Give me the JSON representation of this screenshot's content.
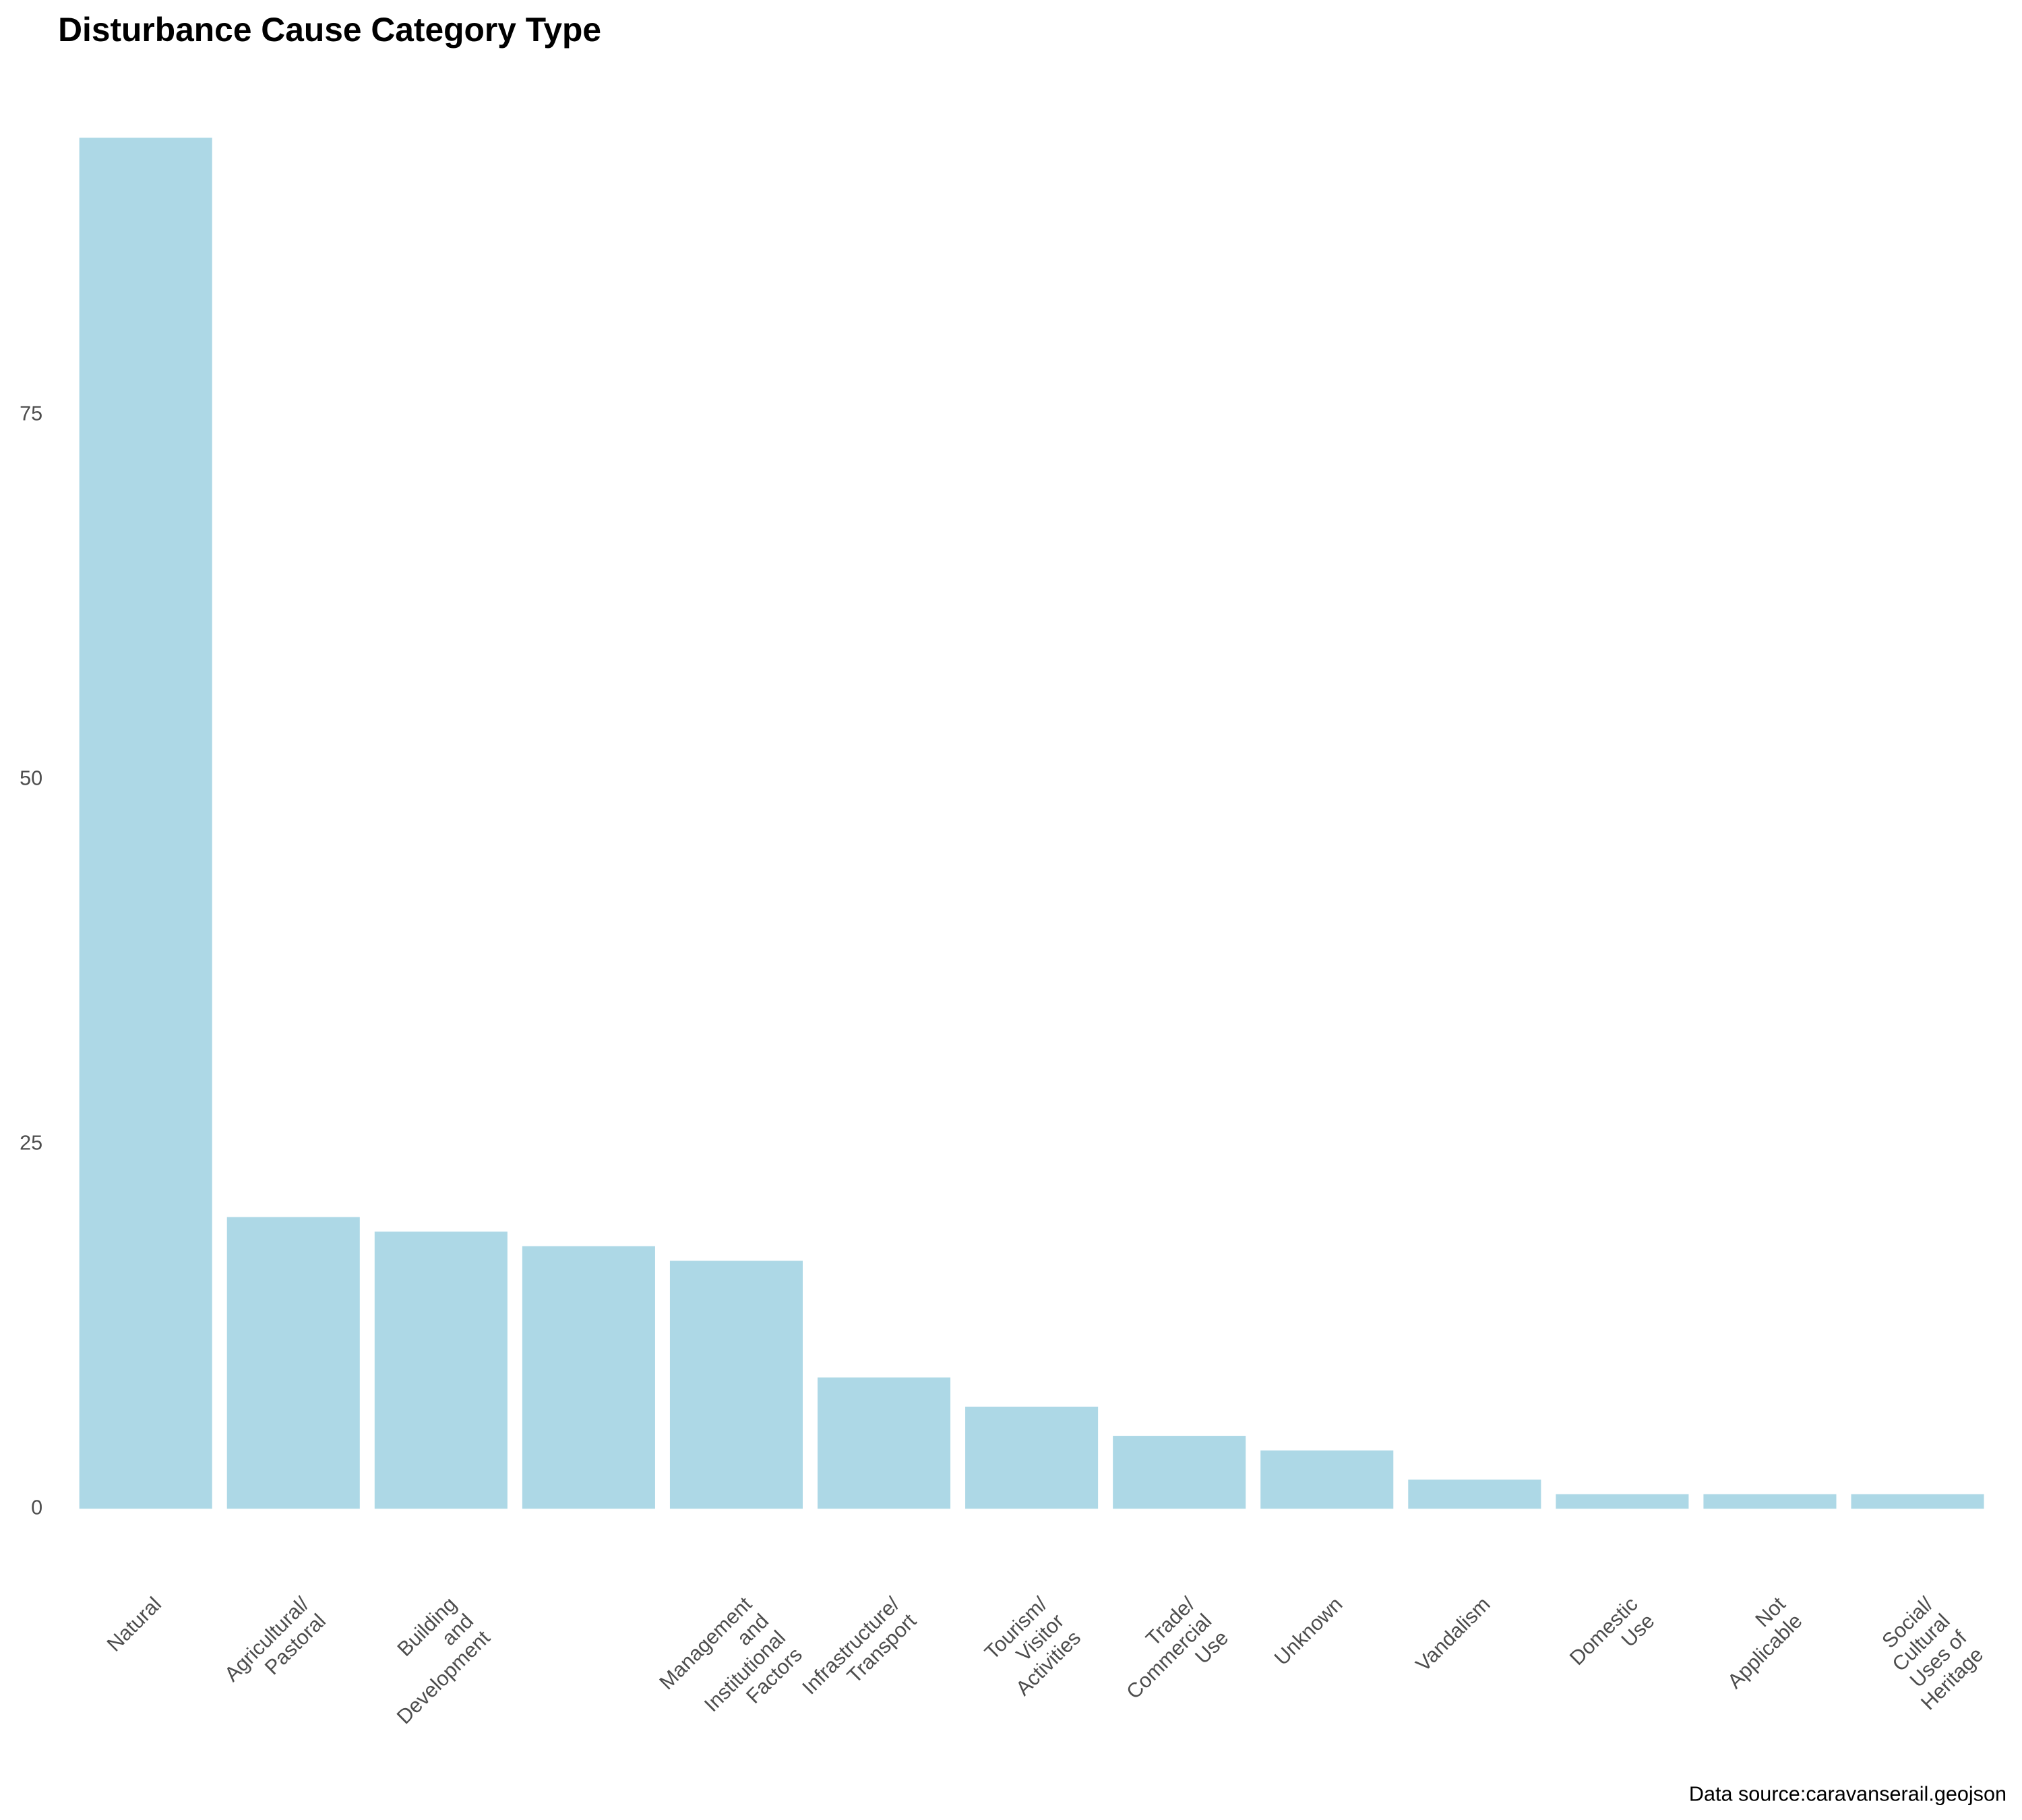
{
  "chart_data": {
    "type": "bar",
    "title": "Disturbance Cause Category Type",
    "caption": "Data source:caravanserail.geojson",
    "categories": [
      "Natural",
      "Agricultural/\nPastoral",
      "Building\nand\nDevelopment",
      null,
      "Management\nand\nInstitutional\nFactors",
      "Infrastructure/\nTransport",
      "Tourism/\nVisitor\nActivities",
      "Trade/\nCommercial\nUse",
      "Unknown",
      "Vandalism",
      "Domestic\nUse",
      "Not\nApplicable",
      "Social/\nCultural\nUses of\nHeritage"
    ],
    "values": [
      94,
      20,
      19,
      18,
      17,
      9,
      7,
      5,
      4,
      2,
      1,
      1,
      1
    ],
    "color": "#add8e6",
    "ylim": [
      -4.7,
      98.7
    ],
    "yticks": [
      0,
      25,
      50,
      75
    ],
    "grid": false
  }
}
